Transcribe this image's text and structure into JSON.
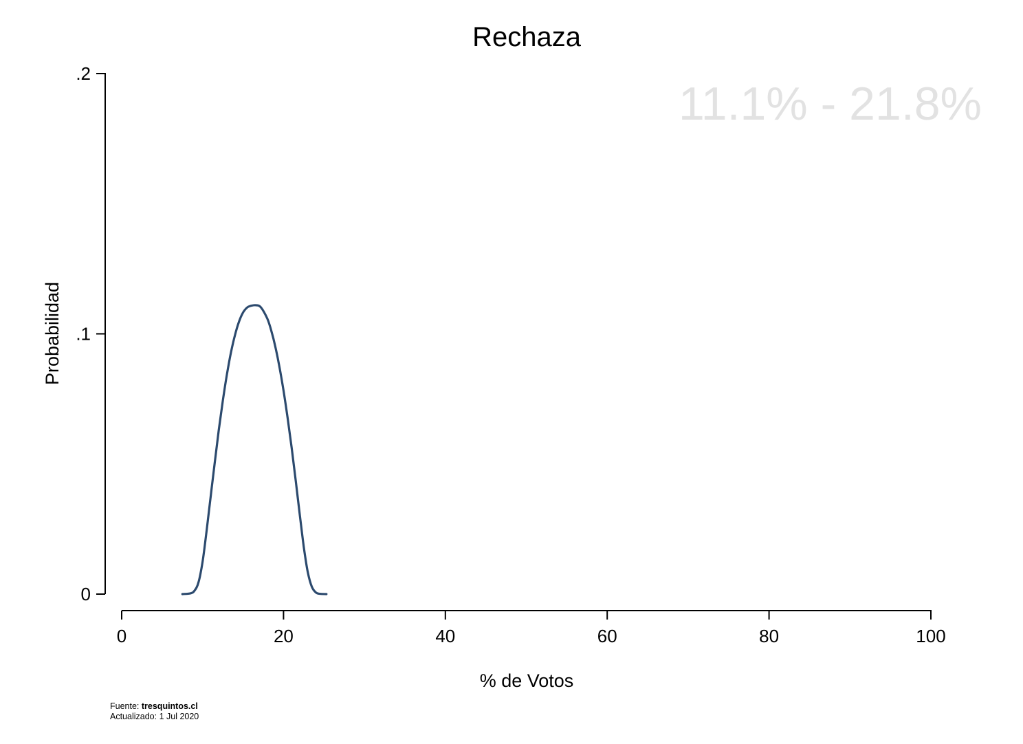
{
  "chart_data": {
    "type": "line",
    "title": "Rechaza",
    "xlabel": "% de Votos",
    "ylabel": "Probabilidad",
    "xlim": [
      0,
      100
    ],
    "ylim": [
      0,
      0.2
    ],
    "x_ticks": [
      0,
      20,
      40,
      60,
      80,
      100
    ],
    "x_tick_labels": [
      "0",
      "20",
      "40",
      "60",
      "80",
      "100"
    ],
    "y_ticks": [
      0,
      0.1,
      0.2
    ],
    "y_tick_labels": [
      "0",
      ".1",
      ".2"
    ],
    "annotation": "11.1% - 21.8%",
    "grid": false,
    "line_color": "#2c4a6e",
    "series": [
      {
        "x": [
          7.5,
          8.5,
          9.0,
          9.5,
          10.0,
          10.5,
          11.0,
          11.5,
          12.0,
          12.5,
          13.0,
          13.5,
          14.0,
          14.5,
          15.0,
          15.5,
          16.0,
          16.6,
          17.2,
          18.0,
          18.5,
          19.0,
          19.5,
          20.0,
          20.5,
          21.0,
          21.5,
          22.0,
          22.5,
          23.0,
          23.5,
          24.0,
          24.5,
          25.3
        ],
        "y": [
          0.0,
          0.0003,
          0.0013,
          0.0046,
          0.0125,
          0.0245,
          0.0376,
          0.0506,
          0.063,
          0.0743,
          0.0843,
          0.0928,
          0.0995,
          0.1047,
          0.1082,
          0.1101,
          0.1108,
          0.111,
          0.1102,
          0.1058,
          0.1011,
          0.0949,
          0.0872,
          0.0782,
          0.0678,
          0.0563,
          0.0437,
          0.0308,
          0.0182,
          0.0084,
          0.0028,
          0.0006,
          0.0001,
          0.0
        ]
      }
    ]
  },
  "footer": {
    "source_prefix": "Fuente: ",
    "source_name": "tresquintos.cl",
    "updated": "Actualizado: 1 Jul 2020"
  }
}
